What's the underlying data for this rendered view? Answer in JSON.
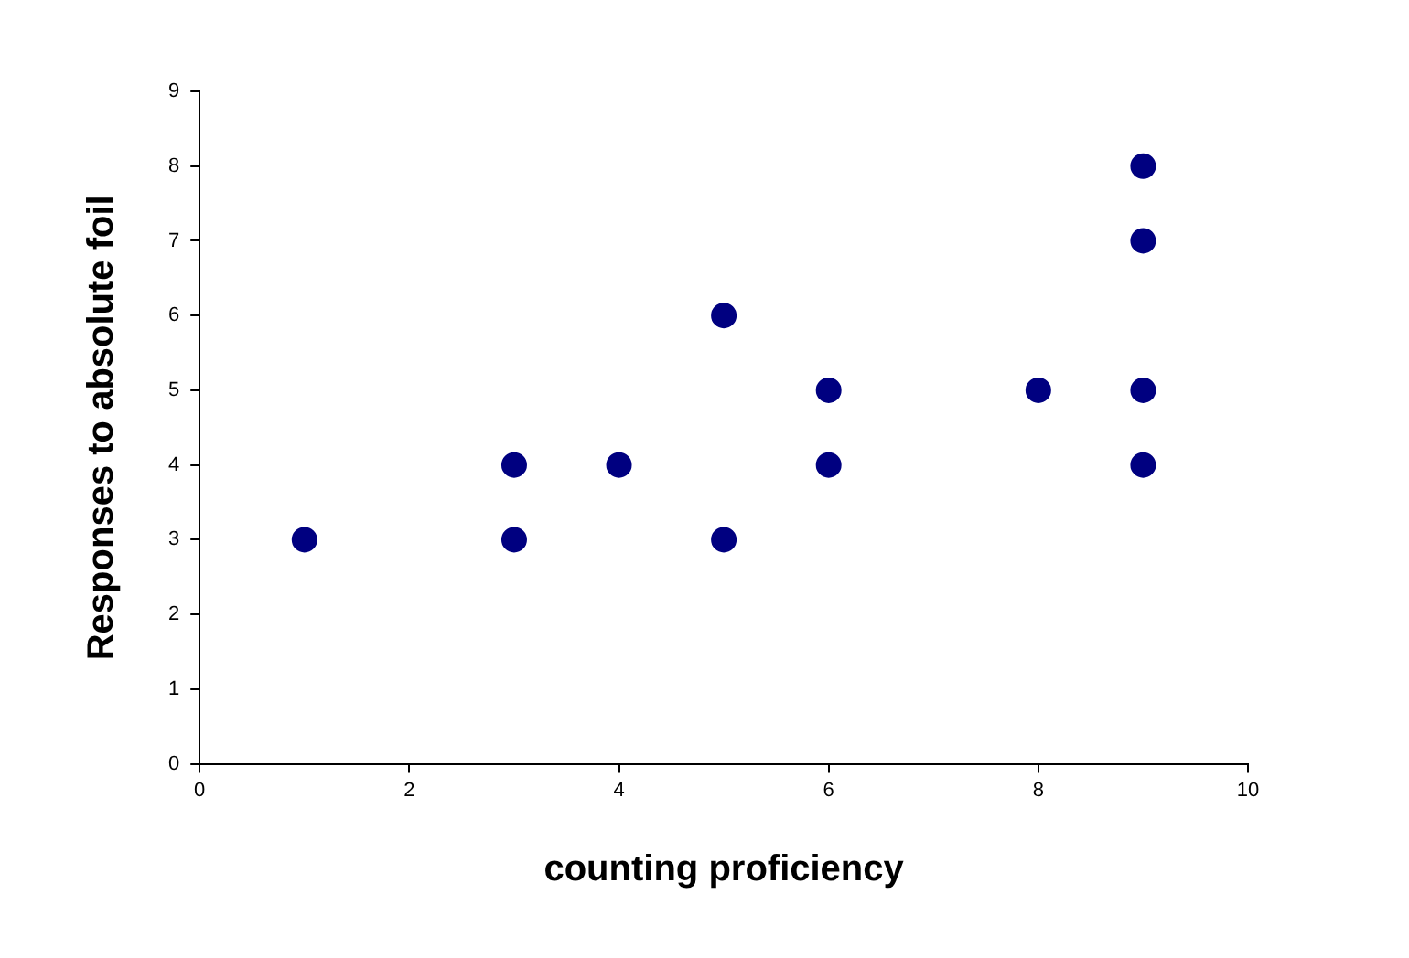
{
  "chart_data": {
    "type": "scatter",
    "xlabel": "counting proficiency",
    "ylabel": "Responses to absolute foil",
    "series": [
      {
        "color": "#000080",
        "x": [
          1,
          3,
          3,
          4,
          5,
          5,
          6,
          6,
          8,
          9,
          9,
          9,
          9
        ],
        "values": [
          3,
          4,
          3,
          4,
          6,
          3,
          5,
          4,
          5,
          8,
          7,
          5,
          4
        ]
      }
    ],
    "xlim": [
      0,
      10
    ],
    "xticks": [
      0,
      2,
      4,
      6,
      8,
      10
    ],
    "ylim": [
      0,
      9
    ],
    "yticks": [
      0,
      1,
      2,
      3,
      4,
      5,
      6,
      7,
      8,
      9
    ],
    "grid": false,
    "legend": false,
    "marker": "circle"
  }
}
